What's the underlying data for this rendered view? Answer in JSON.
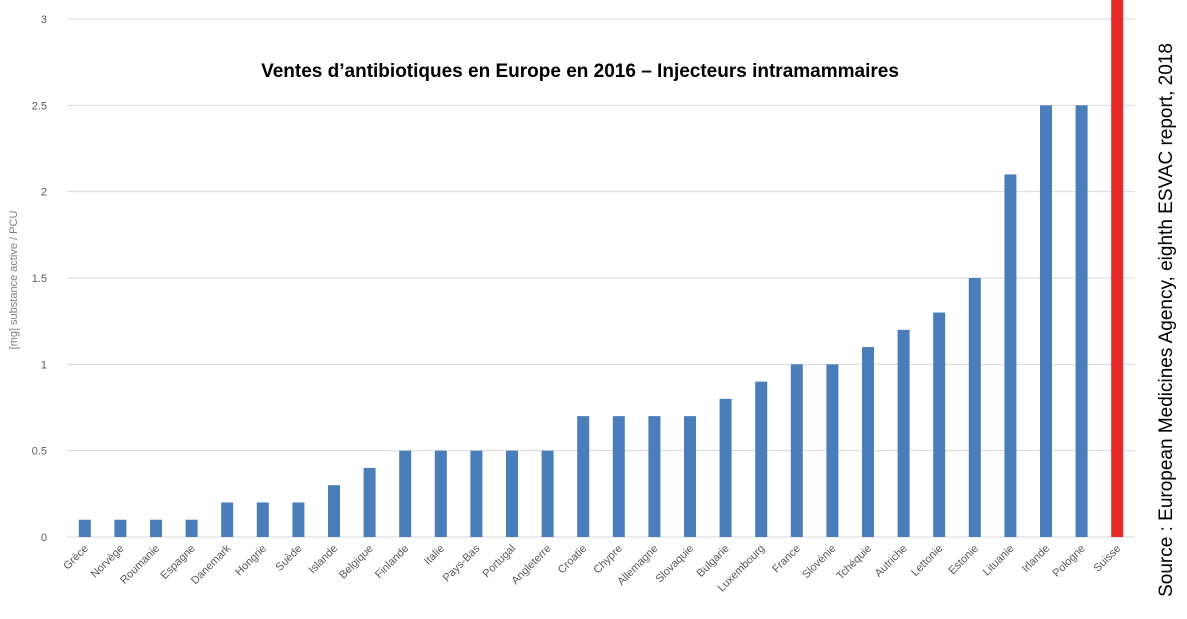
{
  "chart_data": {
    "type": "bar",
    "title": "Ventes d’antibiotiques en Europe en 2016 – Injecteurs intramammaires",
    "y_label": "[mg] substance active / PCU",
    "source": "Source : European Medicines Agency, eighth ESVAC report, 2018",
    "categories": [
      "Grèce",
      "Norvège",
      "Roumanie",
      "Espagne",
      "Danemark",
      "Hongrie",
      "Suède",
      "Islande",
      "Belgique",
      "Finlande",
      "Italie",
      "Pays-Bas",
      "Portugal",
      "Angleterre",
      "Croatie",
      "Chypre",
      "Allemagne",
      "Slovaquie",
      "Bulgarie",
      "Luxembourg",
      "France",
      "Slovénie",
      "Tchéquie",
      "Autriche",
      "Lettonie",
      "Estonie",
      "Lituanie",
      "Irlande",
      "Pologne",
      "Suisse"
    ],
    "values": [
      0.1,
      0.1,
      0.1,
      0.1,
      0.2,
      0.2,
      0.2,
      0.3,
      0.4,
      0.5,
      0.5,
      0.5,
      0.5,
      0.5,
      0.7,
      0.7,
      0.7,
      0.7,
      0.8,
      0.9,
      1,
      1,
      1.1,
      1.2,
      1.3,
      1.5,
      2.1,
      2.5,
      2.5,
      3.2
    ],
    "colors": [
      "#4a7ebb",
      "#4a7ebb",
      "#4a7ebb",
      "#4a7ebb",
      "#4a7ebb",
      "#4a7ebb",
      "#4a7ebb",
      "#4a7ebb",
      "#4a7ebb",
      "#4a7ebb",
      "#4a7ebb",
      "#4a7ebb",
      "#4a7ebb",
      "#4a7ebb",
      "#4a7ebb",
      "#4a7ebb",
      "#4a7ebb",
      "#4a7ebb",
      "#4a7ebb",
      "#4a7ebb",
      "#4a7ebb",
      "#4a7ebb",
      "#4a7ebb",
      "#4a7ebb",
      "#4a7ebb",
      "#4a7ebb",
      "#4a7ebb",
      "#4a7ebb",
      "#4a7ebb",
      "#e8292a"
    ],
    "ylim": [
      0,
      3
    ],
    "yticks": [
      0,
      0.5,
      1,
      1.5,
      2,
      2.5,
      3
    ],
    "grid": true
  }
}
